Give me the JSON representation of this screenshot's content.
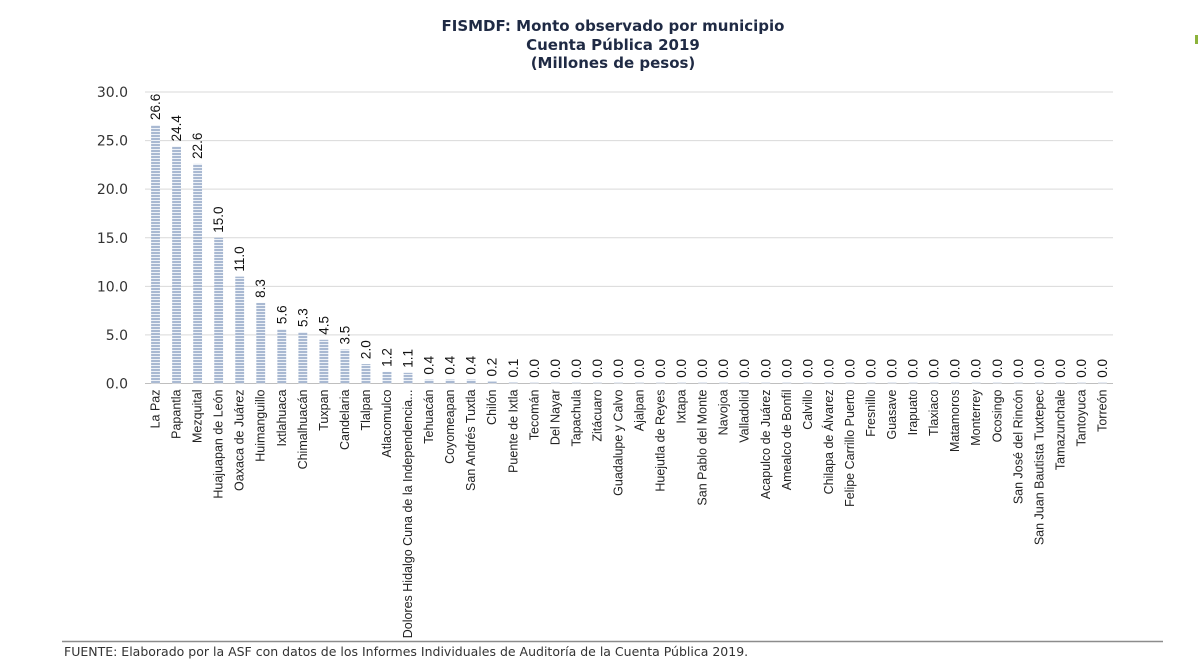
{
  "chart_data": {
    "type": "bar",
    "title_lines": [
      "FISMDF: Monto observado por municipio",
      "Cuenta Pública 2019",
      "(Millones de pesos)"
    ],
    "xlabel": "",
    "ylabel": "",
    "ylim": [
      0,
      30
    ],
    "yticks": [
      "0.0",
      "5.0",
      "10.0",
      "15.0",
      "20.0",
      "25.0",
      "30.0"
    ],
    "grid": true,
    "legend": "none",
    "categories": [
      "La Paz",
      "Papantla",
      "Mezquital",
      "Huajuapan de León",
      "Oaxaca de Juárez",
      "Huimanguillo",
      "Ixtlahuaca",
      "Chimalhuacán",
      "Tuxpan",
      "Candelaria",
      "Tlalpan",
      "Atlacomulco",
      "Dolores Hidalgo Cuna de la Independencia...",
      "Tehuacán",
      "Coyomeapan",
      "San Andrés Tuxtla",
      "Chilón",
      "Puente de Ixtla",
      "Tecomán",
      "Del Nayar",
      "Tapachula",
      "Zitácuaro",
      "Guadalupe y Calvo",
      "Ajalpan",
      "Huejutla de Reyes",
      "Ixtapa",
      "San Pablo del Monte",
      "Navojoa",
      "Valladolid",
      "Acapulco de Juárez",
      "Amealco de Bonfil",
      "Calvillo",
      "Chilapa de Álvarez",
      "Felipe Carrillo Puerto",
      "Fresnillo",
      "Guasave",
      "Irapuato",
      "Tlaxiaco",
      "Matamoros",
      "Monterrey",
      "Ocosingo",
      "San José del Rincón",
      "San Juan Bautista Tuxtepec",
      "Tamazunchale",
      "Tantoyuca",
      "Torreón"
    ],
    "values": [
      26.6,
      24.4,
      22.6,
      15.0,
      11.0,
      8.3,
      5.6,
      5.3,
      4.5,
      3.5,
      2.0,
      1.2,
      1.1,
      0.4,
      0.4,
      0.4,
      0.2,
      0.1,
      0.0,
      0.0,
      0.0,
      0.0,
      0.0,
      0.0,
      0.0,
      0.0,
      0.0,
      0.0,
      0.0,
      0.0,
      0.0,
      0.0,
      0.0,
      0.0,
      0.0,
      0.0,
      0.0,
      0.0,
      0.0,
      0.0,
      0.0,
      0.0,
      0.0,
      0.0,
      0.0,
      0.0
    ],
    "data_labels": [
      "26.6",
      "24.4",
      "22.6",
      "15.0",
      "11.0",
      "8.3",
      "5.6",
      "5.3",
      "4.5",
      "3.5",
      "2.0",
      "1.2",
      "1.1",
      "0.4",
      "0.4",
      "0.4",
      "0.2",
      "0.1",
      "0.0",
      "0.0",
      "0.0",
      "0.0",
      "0.0",
      "0.0",
      "0.0",
      "0.0",
      "0.0",
      "0.0",
      "0.0",
      "0.0",
      "0.0",
      "0.0",
      "0.0",
      "0.0",
      "0.0",
      "0.0",
      "0.0",
      "0.0",
      "0.0",
      "0.0",
      "0.0",
      "0.0",
      "0.0",
      "0.0",
      "0.0",
      "0.0"
    ],
    "source": "FUENTE: Elaborado por la ASF con datos de los Informes Individuales de Auditoría de la Cuenta Pública 2019.",
    "colors": {
      "bar": "#a9b9d2",
      "bar_stripe": "#eef2f8",
      "grid": "#d9d9d9",
      "rule": "#8c8c8c",
      "accent": "#8cb33b"
    }
  }
}
